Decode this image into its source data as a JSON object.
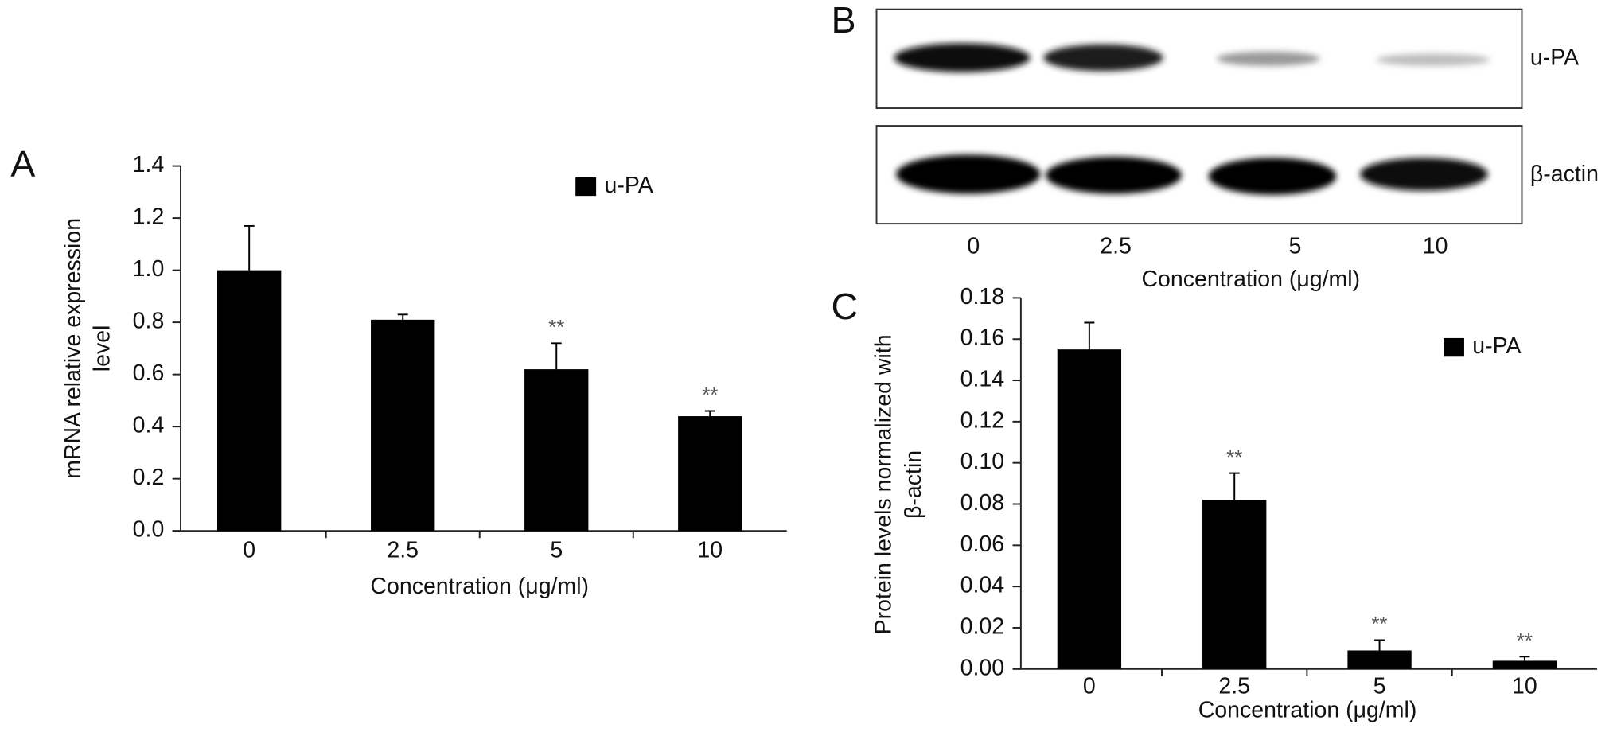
{
  "chart_data": [
    {
      "type": "bar",
      "panel_label": "A",
      "y_label": [
        "mRNA relative expression",
        "level"
      ],
      "x_label": "Concentration (μg/ml)",
      "categories": [
        "0",
        "2.5",
        "5",
        "10"
      ],
      "series": [
        {
          "name": "u-PA",
          "color": "#000000",
          "values": [
            1.0,
            0.81,
            0.62,
            0.44
          ],
          "errors": [
            0.17,
            0.02,
            0.1,
            0.02
          ]
        }
      ],
      "significance": [
        null,
        null,
        "**",
        "**"
      ],
      "ylim": [
        0,
        1.4
      ],
      "yticks": [
        {
          "value": 0,
          "label": "0.0"
        },
        0.2,
        0.4,
        0.6,
        0.8,
        {
          "value": 1,
          "label": "1.0"
        },
        1.2,
        1.4
      ],
      "legend": "upper right"
    },
    {
      "type": "bar",
      "panel_label": "C",
      "y_label": [
        "Protein levels normalized with",
        "β-actin"
      ],
      "x_label": "Concentration (μg/ml)",
      "categories": [
        "0",
        "2.5",
        "5",
        "10"
      ],
      "series": [
        {
          "name": "u-PA",
          "color": "#000000",
          "values": [
            0.155,
            0.082,
            0.009,
            0.004
          ],
          "errors": [
            0.013,
            0.013,
            0.005,
            0.002
          ]
        }
      ],
      "significance": [
        null,
        "**",
        "**",
        "**"
      ],
      "ylim": [
        0,
        0.18
      ],
      "yticks": [
        {
          "value": 0,
          "label": "0.00"
        },
        0.02,
        0.04,
        0.06,
        0.08,
        {
          "value": 0.1,
          "label": "0.10"
        },
        0.12,
        0.14,
        0.16,
        0.18
      ],
      "legend": "upper right"
    }
  ],
  "blot": {
    "panel_label": "B",
    "bands": [
      "u-PA",
      "β-actin"
    ],
    "lanes": [
      "0",
      "2.5",
      "5",
      "10"
    ],
    "x_label": "Concentration (μg/ml)"
  }
}
